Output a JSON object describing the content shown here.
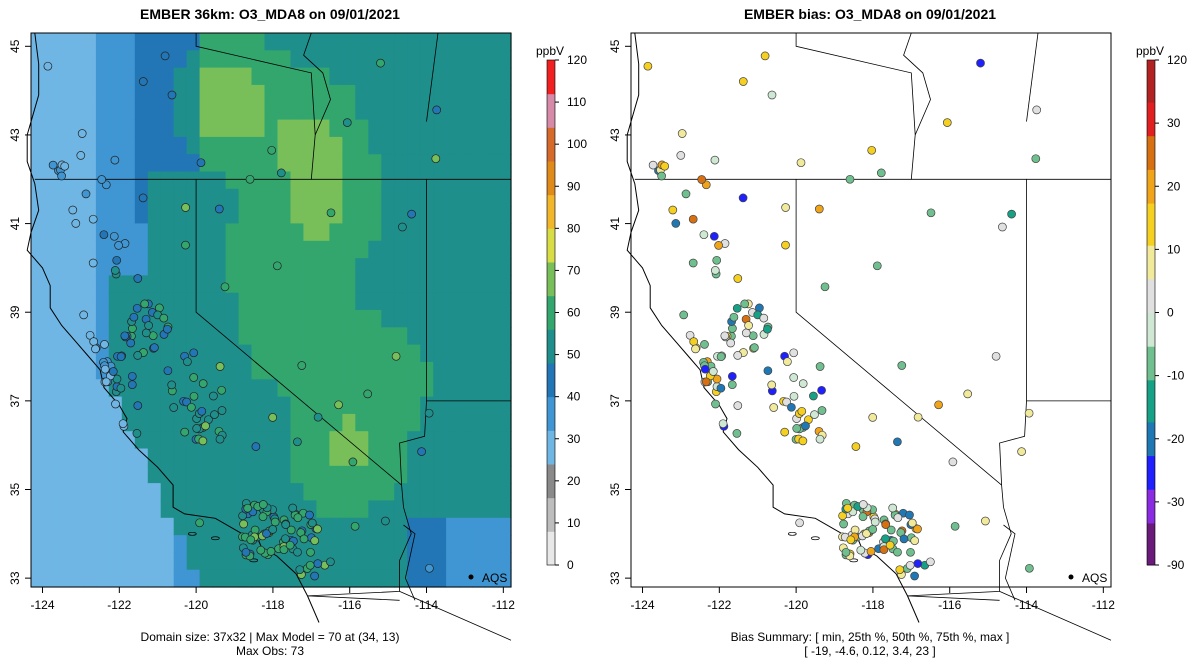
{
  "left": {
    "title": "EMBER 36km: O3_MDA8 on 09/01/2021",
    "footer_line1": "Domain size: 37x32 | Max Model = 70 at (34, 13)",
    "footer_line2": "Max Obs: 73",
    "colorbar_unit": "ppbV",
    "colorbar_ticks": [
      "0",
      "10",
      "20",
      "30",
      "40",
      "50",
      "60",
      "70",
      "80",
      "90",
      "100",
      "110",
      "120"
    ],
    "x_ticks": [
      "-124",
      "-122",
      "-120",
      "-118",
      "-116",
      "-114",
      "-112"
    ],
    "y_ticks": [
      "33",
      "35",
      "37",
      "39",
      "41",
      "43",
      "45"
    ],
    "network_label": "AQS"
  },
  "right": {
    "title": "EMBER bias: O3_MDA8 on 09/01/2021",
    "footer_line1": "Bias Summary: [ min, 25th %, 50th %, 75th %, max ]",
    "footer_line2": "[ -19,   -4.6,   0.12,   3.4,   23 ]",
    "colorbar_unit": "ppbV",
    "colorbar_ticks": [
      "-90",
      "-30",
      "-20",
      "-10",
      "0",
      "10",
      "20",
      "30",
      "120"
    ],
    "x_ticks": [
      "-124",
      "-122",
      "-120",
      "-118",
      "-116",
      "-114",
      "-112"
    ],
    "y_ticks": [
      "33",
      "35",
      "37",
      "39",
      "41",
      "43",
      "45"
    ],
    "network_label": "AQS"
  },
  "colors": {
    "conc_scale": [
      "#e8e8e8",
      "#bdbdbd",
      "#8a8a8a",
      "#6fb6e4",
      "#3f96d2",
      "#2276b5",
      "#1f8f8c",
      "#33a66e",
      "#78bf5a",
      "#d8dd45",
      "#f2b62a",
      "#e08a1a",
      "#d56a2a",
      "#d68aa8",
      "#f02020"
    ],
    "bias_scale": [
      "#6a1b7a",
      "#8a2be2",
      "#2020ff",
      "#1f78b4",
      "#16a085",
      "#6fc08e",
      "#cfe8d4",
      "#e0e0e0",
      "#f1ea9a",
      "#f5d020",
      "#f0a41a",
      "#d77010",
      "#e02020",
      "#b22222"
    ]
  }
}
